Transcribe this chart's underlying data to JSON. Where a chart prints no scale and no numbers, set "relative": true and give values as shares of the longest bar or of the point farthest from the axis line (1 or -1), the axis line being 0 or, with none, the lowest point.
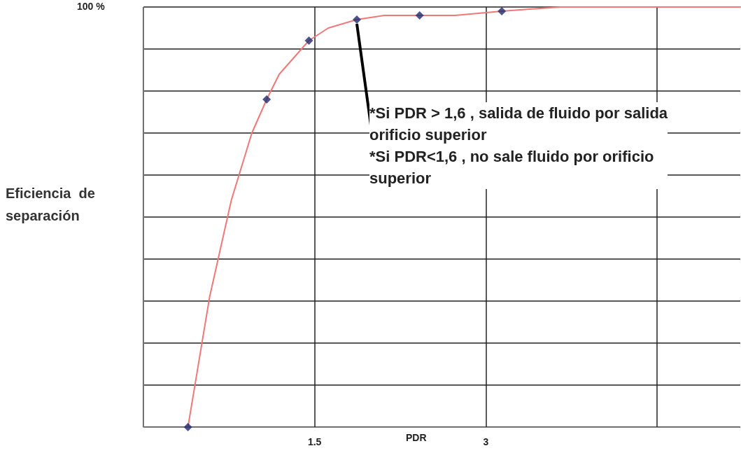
{
  "chart_data": {
    "type": "line",
    "relative": true,
    "xlabel": "PDR",
    "ylabel": "Eficiencia  de\nseparación",
    "xlim": [
      0,
      5.23
    ],
    "xticks": [
      {
        "value": 0,
        "label": null
      },
      {
        "value": 1.5,
        "label": "1.5"
      },
      {
        "value": 3,
        "label": "3"
      },
      {
        "value": 4.5,
        "label": null
      }
    ],
    "grid": true,
    "series": [
      {
        "color": "#f07878",
        "marker": "none",
        "x": [
          0.39,
          0.58,
          0.77,
          0.95,
          1.08,
          1.19,
          1.32,
          1.45,
          1.62,
          1.87,
          2.11,
          2.42,
          2.73,
          3.14,
          3.65,
          4.26,
          5.23
        ],
        "values": [
          0,
          0.31,
          0.54,
          0.7,
          0.78,
          0.84,
          0.88,
          0.92,
          0.95,
          0.97,
          0.98,
          0.98,
          0.98,
          0.99,
          1,
          1,
          1
        ]
      },
      {
        "type": "scatter",
        "color": "#1f2a6e",
        "marker": "diamond",
        "x": [
          0.39,
          1.08,
          1.45,
          1.87,
          2.42,
          3.14
        ],
        "values": [
          0,
          0.78,
          0.92,
          0.97,
          0.98,
          0.99
        ]
      }
    ],
    "annotations": [
      "100 %",
      {
        "text": "*Si PDR > 1,6 , salida de fluido por salida\norificio superior\n*Si PDR<1,6 , no sale fluido por orificio\nsuperior",
        "x": 1.87,
        "y": 0.97
      }
    ]
  }
}
